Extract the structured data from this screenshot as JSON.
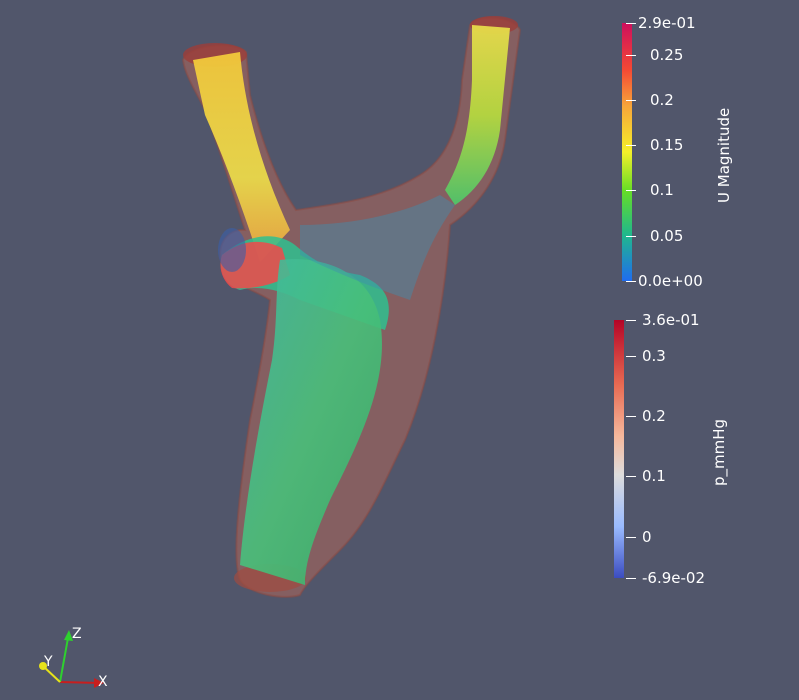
{
  "scene": {
    "background": "#51566b",
    "vessel_color": "#b0675a",
    "vessel_outline": "#8e4a42"
  },
  "colorbars": {
    "velocity": {
      "title": "U Magnitude",
      "ticks": [
        "2.9e-01",
        "0.25",
        "0.2",
        "0.15",
        "0.1",
        "0.05",
        "0.0e+00"
      ],
      "colors": [
        "#ce0f5d",
        "#f44834",
        "#f7a43a",
        "#f4f02a",
        "#66dd26",
        "#20b88c",
        "#1f6cf0"
      ]
    },
    "pressure": {
      "title": "p_mmHg",
      "ticks": [
        "3.6e-01",
        "0.3",
        "0.2",
        "0.1",
        "0",
        "-6.9e-02"
      ],
      "colors": [
        "#b40426",
        "#e86a52",
        "#f6b89c",
        "#dddcdc",
        "#9abbff",
        "#3b4cc0"
      ]
    }
  },
  "orientation_axes": {
    "x_label": "X",
    "y_label": "Y",
    "z_label": "Z",
    "x_color": "#c81e1e",
    "y_color": "#e6e21a",
    "z_color": "#2ed12e"
  }
}
